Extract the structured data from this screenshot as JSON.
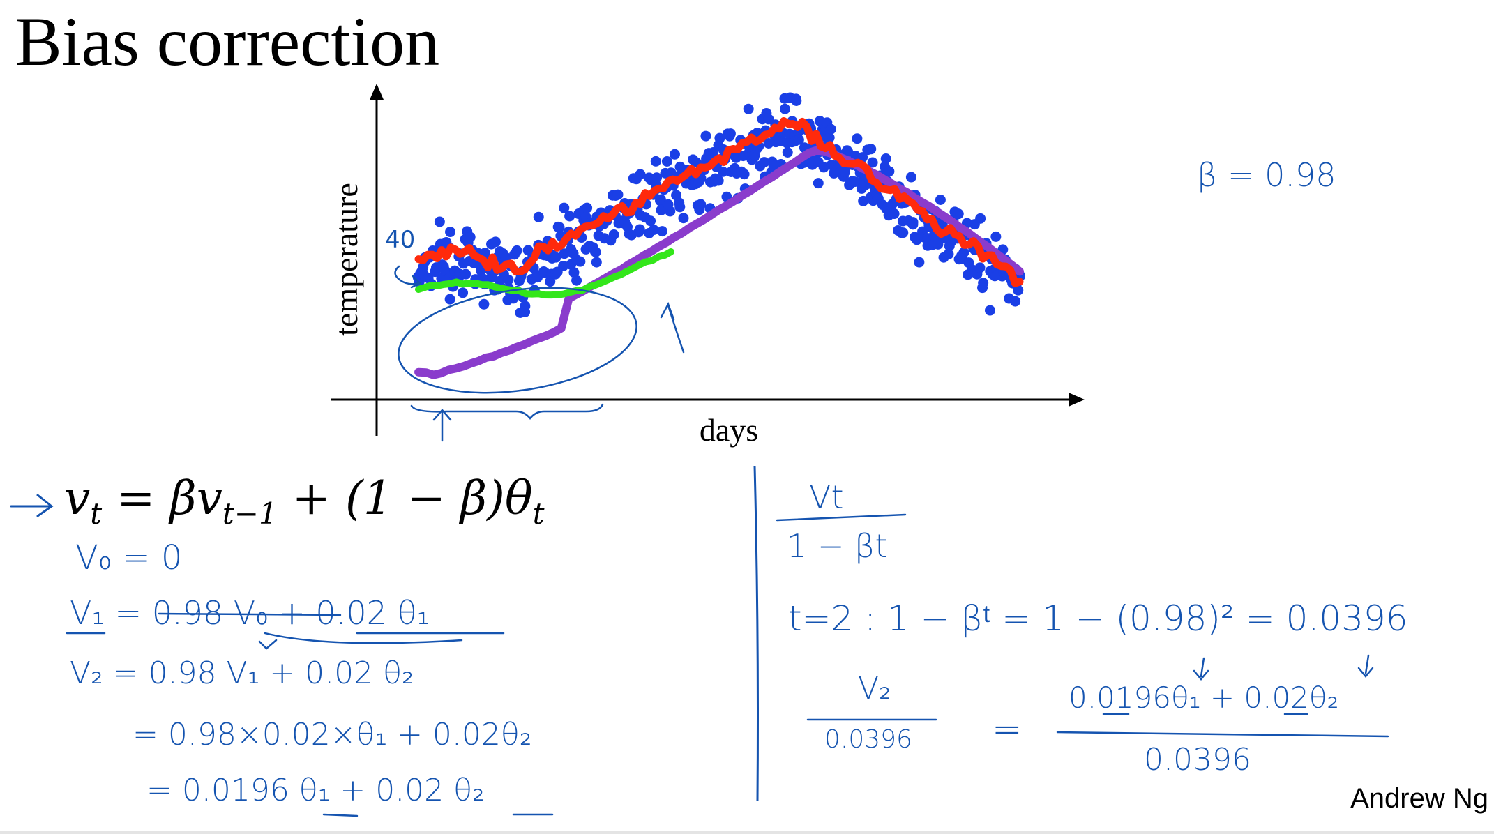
{
  "slide": {
    "title": "Bias correction",
    "author": "Andrew Ng"
  },
  "chart_data": {
    "type": "scatter",
    "xlabel": "days",
    "ylabel": "temperature",
    "series": [
      {
        "kind": "points",
        "color": "#1a3fe6"
      },
      {
        "kind": "line",
        "color": "#ff2a0c"
      },
      {
        "kind": "line",
        "color": "#8a3ccc"
      },
      {
        "kind": "line",
        "color": "#33e61a"
      }
    ],
    "annotations": [
      "40"
    ]
  },
  "equation": {
    "lhs": "v",
    "lhs_sub": "t",
    "mid1": " = βv",
    "mid1_sub": "t−1",
    "mid2": " + (1 − β)θ",
    "mid2_sub": "t"
  },
  "handwriting": {
    "beta": "β = 0.98",
    "v0": "V₀ = 0",
    "v1": "V₁ = 0.98 V₀ + 0.02 θ₁",
    "v2": "V₂ = 0.98 V₁ + 0.02 θ₂",
    "v2b": "= 0.98×0.02×θ₁ + 0.02θ₂",
    "v2c": "= 0.0196 θ₁ + 0.02 θ₂",
    "frac_num": "Vt",
    "frac_den": "1 − βt",
    "t2_line": "t=2 :   1 − βᵗ  =  1 − (0.98)²  =  0.0396",
    "v2_num": "V₂",
    "v2_den": "0.0396",
    "rhs_num": "0.0196θ₁ + 0.02θ₂",
    "rhs_den": "0.0396",
    "eqsign": "="
  },
  "colors": {
    "ink": "#1554b0",
    "dots": "#1a3fe6",
    "red": "#ff2a0c",
    "purple": "#8a3ccc",
    "green": "#33e61a"
  }
}
